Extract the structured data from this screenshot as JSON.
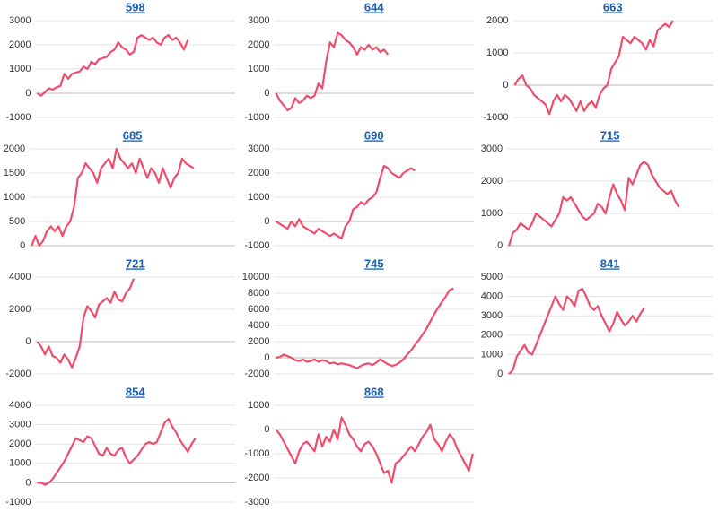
{
  "chart_data": [
    {
      "type": "line",
      "title": "598",
      "color": "#ee4d6b",
      "grid": true,
      "ylim": [
        -1000,
        3000
      ],
      "yticks": [
        -1000,
        0,
        1000,
        2000,
        3000
      ],
      "values": [
        0,
        -100,
        50,
        200,
        150,
        250,
        300,
        800,
        600,
        800,
        850,
        900,
        1100,
        1000,
        1300,
        1200,
        1400,
        1450,
        1500,
        1700,
        1800,
        2100,
        1900,
        1800,
        1600,
        1700,
        2300,
        2400,
        2300,
        2200,
        2300,
        2100,
        2000,
        2300,
        2400,
        2200,
        2300,
        2100,
        1800,
        2200
      ]
    },
    {
      "type": "line",
      "title": "644",
      "color": "#ee4d6b",
      "grid": true,
      "ylim": [
        -1000,
        3000
      ],
      "yticks": [
        -1000,
        0,
        1000,
        2000,
        3000
      ],
      "values": [
        0,
        -300,
        -500,
        -700,
        -600,
        -200,
        -400,
        -300,
        -100,
        -200,
        -100,
        400,
        200,
        1300,
        2100,
        1900,
        2500,
        2400,
        2200,
        2100,
        1900,
        1600,
        1900,
        1800,
        2000,
        1800,
        1900,
        1700,
        1800,
        1600
      ]
    },
    {
      "type": "line",
      "title": "663",
      "color": "#ee4d6b",
      "grid": true,
      "ylim": [
        -1000,
        2000
      ],
      "yticks": [
        -1000,
        0,
        1000,
        2000
      ],
      "values": [
        0,
        200,
        300,
        0,
        -100,
        -300,
        -400,
        -500,
        -600,
        -900,
        -500,
        -300,
        -500,
        -300,
        -400,
        -600,
        -800,
        -500,
        -800,
        -600,
        -500,
        -700,
        -300,
        -100,
        0,
        500,
        700,
        900,
        1500,
        1400,
        1300,
        1500,
        1400,
        1300,
        1100,
        1400,
        1200,
        1700,
        1800,
        1900,
        1800,
        2000
      ]
    },
    {
      "type": "line",
      "title": "685",
      "color": "#ee4d6b",
      "grid": true,
      "ylim": [
        0,
        2000
      ],
      "yticks": [
        0,
        500,
        1000,
        1500,
        2000
      ],
      "values": [
        0,
        200,
        0,
        100,
        300,
        400,
        300,
        400,
        200,
        400,
        500,
        800,
        1400,
        1500,
        1700,
        1600,
        1500,
        1300,
        1600,
        1700,
        1800,
        1600,
        2000,
        1800,
        1700,
        1600,
        1700,
        1500,
        1800,
        1600,
        1400,
        1600,
        1500,
        1300,
        1600,
        1400,
        1200,
        1400,
        1500,
        1800,
        1700,
        1650,
        1600
      ]
    },
    {
      "type": "line",
      "title": "690",
      "color": "#ee4d6b",
      "grid": true,
      "ylim": [
        -1000,
        3000
      ],
      "yticks": [
        -1000,
        0,
        1000,
        2000,
        3000
      ],
      "values": [
        0,
        -100,
        -200,
        -300,
        0,
        -200,
        100,
        -200,
        -300,
        -400,
        -500,
        -300,
        -400,
        -500,
        -600,
        -500,
        -600,
        -700,
        -200,
        0,
        500,
        600,
        800,
        700,
        900,
        1000,
        1200,
        1800,
        2300,
        2200,
        2000,
        1900,
        1800,
        2000,
        2100,
        2200,
        2100
      ]
    },
    {
      "type": "line",
      "title": "715",
      "color": "#ee4d6b",
      "grid": true,
      "ylim": [
        0,
        3000
      ],
      "yticks": [
        0,
        1000,
        2000,
        3000
      ],
      "values": [
        0,
        400,
        500,
        700,
        600,
        500,
        700,
        1000,
        900,
        800,
        700,
        600,
        800,
        1000,
        1500,
        1400,
        1500,
        1300,
        1100,
        900,
        800,
        900,
        1000,
        1300,
        1200,
        1000,
        1500,
        1900,
        1600,
        1400,
        1100,
        2100,
        1900,
        2200,
        2500,
        2600,
        2500,
        2200,
        2000,
        1800,
        1700,
        1600,
        1700,
        1400,
        1200
      ]
    },
    {
      "type": "line",
      "title": "721",
      "color": "#ee4d6b",
      "grid": true,
      "ylim": [
        -2000,
        4000
      ],
      "yticks": [
        -2000,
        0,
        2000,
        4000
      ],
      "values": [
        0,
        -300,
        -800,
        -300,
        -900,
        -1000,
        -1300,
        -800,
        -1100,
        -1600,
        -1000,
        -300,
        1500,
        2200,
        1900,
        1500,
        2300,
        2500,
        2700,
        2400,
        3100,
        2600,
        2500,
        3000,
        3300,
        3900
      ]
    },
    {
      "type": "line",
      "title": "745",
      "color": "#ee4d6b",
      "grid": true,
      "ylim": [
        -2000,
        10000
      ],
      "yticks": [
        -2000,
        0,
        2000,
        4000,
        6000,
        8000,
        10000
      ],
      "values": [
        0,
        100,
        400,
        200,
        0,
        -300,
        -400,
        -200,
        -500,
        -400,
        -200,
        -500,
        -300,
        -400,
        -700,
        -600,
        -800,
        -700,
        -800,
        -900,
        -1100,
        -1300,
        -1000,
        -800,
        -700,
        -900,
        -600,
        -200,
        -500,
        -800,
        -1000,
        -900,
        -600,
        -200,
        400,
        900,
        1600,
        2200,
        2900,
        3600,
        4500,
        5400,
        6200,
        6900,
        7600,
        8400,
        8600
      ]
    },
    {
      "type": "line",
      "title": "841",
      "color": "#ee4d6b",
      "grid": true,
      "ylim": [
        0,
        5000
      ],
      "yticks": [
        0,
        1000,
        2000,
        3000,
        4000,
        5000
      ],
      "values": [
        0,
        200,
        900,
        1200,
        1500,
        1100,
        1000,
        1500,
        2000,
        2500,
        3000,
        3500,
        4000,
        3600,
        3300,
        4000,
        3800,
        3500,
        4300,
        4400,
        4000,
        3500,
        3300,
        3500,
        3000,
        2600,
        2200,
        2600,
        3200,
        2800,
        2500,
        2700,
        3000,
        2700,
        3100,
        3400
      ]
    },
    {
      "type": "line",
      "title": "854",
      "color": "#ee4d6b",
      "grid": true,
      "ylim": [
        -1000,
        4000
      ],
      "yticks": [
        -1000,
        0,
        1000,
        2000,
        3000,
        4000
      ],
      "values": [
        0,
        0,
        -100,
        0,
        200,
        500,
        800,
        1100,
        1500,
        1900,
        2300,
        2200,
        2100,
        2400,
        2300,
        1900,
        1500,
        1400,
        1800,
        1500,
        1400,
        1700,
        1800,
        1300,
        1000,
        1200,
        1400,
        1700,
        2000,
        2100,
        2000,
        2100,
        2600,
        3100,
        3300,
        2900,
        2600,
        2200,
        1900,
        1600,
        2000,
        2300
      ]
    },
    {
      "type": "line",
      "title": "868",
      "color": "#ee4d6b",
      "grid": true,
      "ylim": [
        -3000,
        1000
      ],
      "yticks": [
        -3000,
        -2000,
        -1000,
        0,
        1000
      ],
      "values": [
        0,
        -200,
        -500,
        -800,
        -1100,
        -1400,
        -900,
        -600,
        -500,
        -700,
        -900,
        -200,
        -700,
        -300,
        -500,
        0,
        -400,
        500,
        200,
        -200,
        -400,
        -700,
        -900,
        -600,
        -500,
        -700,
        -1000,
        -1400,
        -1800,
        -1700,
        -2200,
        -1400,
        -1300,
        -1100,
        -900,
        -700,
        -900,
        -600,
        -300,
        -100,
        200,
        -400,
        -600,
        -900,
        -500,
        -200,
        -400,
        -800,
        -1100,
        -1400,
        -1700,
        -1000
      ]
    }
  ]
}
